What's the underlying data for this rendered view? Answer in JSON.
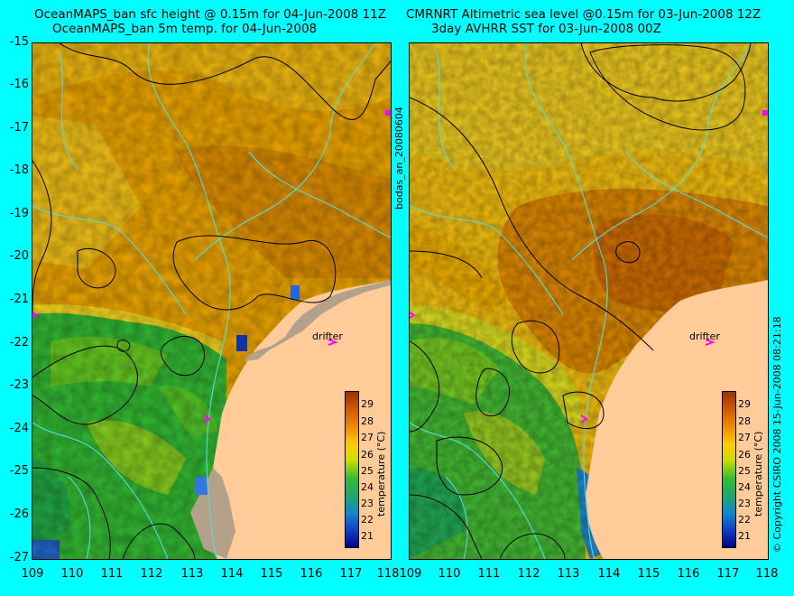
{
  "titles": {
    "left_line1": "OceanMAPS_ban sfc height @ 0.15m for 04-Jun-2008 11Z",
    "left_line2": "OceanMAPS_ban 5m temp. for 04-Jun-2008",
    "right_line1": "CMRNRT Altimetric sea level  @0.15m  for 03-Jun-2008 12Z",
    "right_line2": "3day AVHRR SST for 03-Jun-2008 00Z"
  },
  "y_ticks": [
    "-15",
    "-16",
    "-17",
    "-18",
    "-19",
    "-20",
    "-21",
    "-22",
    "-23",
    "-24",
    "-25",
    "-26",
    "-27"
  ],
  "x_ticks": [
    "109",
    "110",
    "111",
    "112",
    "113",
    "114",
    "115",
    "116",
    "117",
    "118"
  ],
  "colorbar": {
    "title": "temperature (°C)",
    "ticks": [
      "29",
      "28",
      "27",
      "26",
      "25",
      "24",
      "23",
      "22",
      "21"
    ]
  },
  "annotations": {
    "drifter": "drifter",
    "vertical_middle": "bodas_an_20080604",
    "copyright": "© Copyright CSIRO 2008   15-Jun-2008 08:21:18"
  },
  "colors": {
    "background": "#00ffff",
    "land": "#ffcc99",
    "reef": "#b5a08a",
    "warm_sst": "#f0a000",
    "cool_sst": "#22bb22",
    "drifter": "#ff00ff",
    "bathymetry": "#55dddd"
  }
}
